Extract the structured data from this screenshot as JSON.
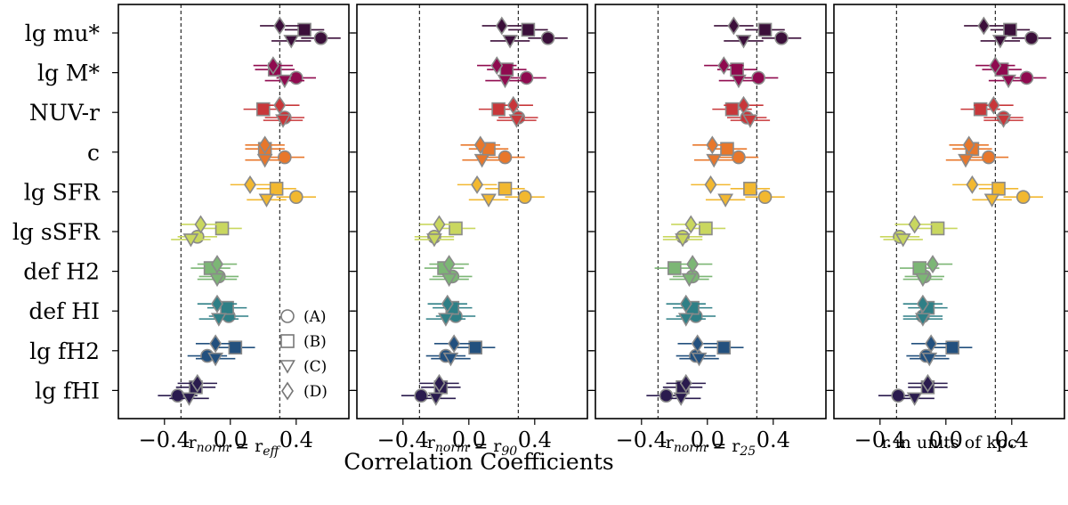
{
  "figure": {
    "shared_xlabel": "Correlation Coefficients",
    "legend": [
      {
        "label": "(A)",
        "marker": "circle"
      },
      {
        "label": "(B)",
        "marker": "square"
      },
      {
        "label": "(C)",
        "marker": "triangle-down"
      },
      {
        "label": "(D)",
        "marker": "diamond"
      }
    ],
    "row_colors": [
      "#3b0f3a",
      "#8f0a4f",
      "#c8373a",
      "#e8772b",
      "#f2b830",
      "#c9d75f",
      "#7cb675",
      "#2f7f86",
      "#23507e",
      "#2a1b4e"
    ]
  },
  "chart_data": [
    {
      "type": "scatter",
      "panel_label_main": "r",
      "panel_label_sub": "norm",
      "panel_label_rest": " = r",
      "panel_label_rest_sub": "eff",
      "categories": [
        "lg mu*",
        "lg M*",
        "NUV-r",
        "c",
        "lg SFR",
        "lg sSFR",
        "def H2",
        "def HI",
        "lg fH2",
        "lg fHI"
      ],
      "xlim": [
        -0.68,
        0.72
      ],
      "xticks": [
        -0.4,
        0.0,
        0.4
      ],
      "xtick_labels": [
        "−0.4",
        "0.0",
        "0.4"
      ],
      "ref_lines": [
        -0.3,
        0.3
      ],
      "series": [
        {
          "name": "(A)",
          "marker": "circle",
          "values": [
            0.55,
            0.4,
            0.33,
            0.33,
            0.4,
            -0.2,
            -0.07,
            -0.01,
            -0.14,
            -0.32
          ],
          "errors": [
            0.12,
            0.12,
            0.12,
            0.12,
            0.12,
            0.12,
            0.12,
            0.12,
            0.12,
            0.12
          ]
        },
        {
          "name": "(B)",
          "marker": "square",
          "values": [
            0.45,
            0.27,
            0.2,
            0.21,
            0.28,
            -0.05,
            -0.12,
            -0.02,
            0.03,
            -0.21
          ],
          "errors": [
            0.12,
            0.12,
            0.12,
            0.12,
            0.12,
            0.12,
            0.12,
            0.12,
            0.12,
            0.12
          ]
        },
        {
          "name": "(C)",
          "marker": "triangle-down",
          "values": [
            0.37,
            0.33,
            0.32,
            0.21,
            0.22,
            -0.24,
            -0.08,
            -0.07,
            -0.09,
            -0.25
          ],
          "errors": [
            0.12,
            0.12,
            0.12,
            0.12,
            0.12,
            0.12,
            0.12,
            0.12,
            0.12,
            0.12
          ]
        },
        {
          "name": "(D)",
          "marker": "diamond",
          "values": [
            0.3,
            0.26,
            0.3,
            0.21,
            0.12,
            -0.18,
            -0.08,
            -0.08,
            -0.09,
            -0.2
          ],
          "errors": [
            0.12,
            0.12,
            0.12,
            0.12,
            0.12,
            0.12,
            0.12,
            0.12,
            0.12,
            0.12
          ]
        }
      ]
    },
    {
      "type": "scatter",
      "panel_label_main": "r",
      "panel_label_sub": "norm",
      "panel_label_rest": " = r",
      "panel_label_rest_sub": "90",
      "categories": [
        "lg mu*",
        "lg M*",
        "NUV-r",
        "c",
        "lg SFR",
        "lg sSFR",
        "def H2",
        "def HI",
        "lg fH2",
        "lg fHI"
      ],
      "xlim": [
        -0.68,
        0.72
      ],
      "xticks": [
        -0.4,
        0.0,
        0.4
      ],
      "xtick_labels": [
        "−0.4",
        "0.0",
        "0.4"
      ],
      "ref_lines": [
        -0.3,
        0.3
      ],
      "series": [
        {
          "name": "(A)",
          "marker": "circle",
          "values": [
            0.48,
            0.35,
            0.3,
            0.22,
            0.34,
            -0.21,
            -0.1,
            -0.08,
            -0.14,
            -0.29
          ],
          "errors": [
            0.12,
            0.12,
            0.12,
            0.12,
            0.12,
            0.12,
            0.12,
            0.12,
            0.12,
            0.12
          ]
        },
        {
          "name": "(B)",
          "marker": "square",
          "values": [
            0.36,
            0.23,
            0.18,
            0.12,
            0.22,
            -0.08,
            -0.15,
            -0.1,
            0.04,
            -0.17
          ],
          "errors": [
            0.12,
            0.12,
            0.12,
            0.12,
            0.12,
            0.12,
            0.12,
            0.12,
            0.12,
            0.12
          ]
        },
        {
          "name": "(C)",
          "marker": "triangle-down",
          "values": [
            0.25,
            0.22,
            0.29,
            0.08,
            0.12,
            -0.21,
            -0.12,
            -0.14,
            -0.11,
            -0.2
          ],
          "errors": [
            0.12,
            0.12,
            0.12,
            0.12,
            0.12,
            0.12,
            0.12,
            0.12,
            0.12,
            0.12
          ]
        },
        {
          "name": "(D)",
          "marker": "diamond",
          "values": [
            0.2,
            0.17,
            0.27,
            0.07,
            0.05,
            -0.18,
            -0.12,
            -0.13,
            -0.09,
            -0.18
          ],
          "errors": [
            0.12,
            0.12,
            0.12,
            0.12,
            0.12,
            0.12,
            0.12,
            0.12,
            0.12,
            0.12
          ]
        }
      ]
    },
    {
      "type": "scatter",
      "panel_label_main": "r",
      "panel_label_sub": "norm",
      "panel_label_rest": " = r",
      "panel_label_rest_sub": "25",
      "categories": [
        "lg mu*",
        "lg M*",
        "NUV-r",
        "c",
        "lg SFR",
        "lg sSFR",
        "def H2",
        "def HI",
        "lg fH2",
        "lg fHI"
      ],
      "xlim": [
        -0.68,
        0.72
      ],
      "xticks": [
        -0.4,
        0.0,
        0.4
      ],
      "xtick_labels": [
        "−0.4",
        "0.0",
        "0.4"
      ],
      "ref_lines": [
        -0.3,
        0.3
      ],
      "series": [
        {
          "name": "(A)",
          "marker": "circle",
          "values": [
            0.45,
            0.31,
            0.24,
            0.19,
            0.35,
            -0.15,
            -0.09,
            -0.07,
            -0.07,
            -0.25
          ],
          "errors": [
            0.12,
            0.12,
            0.12,
            0.12,
            0.12,
            0.12,
            0.12,
            0.12,
            0.12,
            0.12
          ]
        },
        {
          "name": "(B)",
          "marker": "square",
          "values": [
            0.35,
            0.18,
            0.15,
            0.12,
            0.26,
            -0.01,
            -0.2,
            -0.09,
            0.1,
            -0.15
          ],
          "errors": [
            0.12,
            0.12,
            0.12,
            0.12,
            0.12,
            0.12,
            0.12,
            0.12,
            0.12,
            0.12
          ]
        },
        {
          "name": "(C)",
          "marker": "triangle-down",
          "values": [
            0.22,
            0.19,
            0.26,
            0.04,
            0.11,
            -0.15,
            -0.11,
            -0.13,
            -0.05,
            -0.16
          ],
          "errors": [
            0.12,
            0.12,
            0.12,
            0.12,
            0.12,
            0.12,
            0.12,
            0.12,
            0.12,
            0.12
          ]
        },
        {
          "name": "(D)",
          "marker": "diamond",
          "values": [
            0.16,
            0.1,
            0.22,
            0.03,
            0.02,
            -0.1,
            -0.09,
            -0.13,
            -0.06,
            -0.13
          ],
          "errors": [
            0.12,
            0.12,
            0.12,
            0.12,
            0.12,
            0.12,
            0.12,
            0.12,
            0.12,
            0.12
          ]
        }
      ]
    },
    {
      "type": "scatter",
      "panel_label_main": "r in units of kpc",
      "panel_label_sub": "",
      "panel_label_rest": "",
      "panel_label_rest_sub": "",
      "categories": [
        "lg mu*",
        "lg M*",
        "NUV-r",
        "c",
        "lg SFR",
        "lg sSFR",
        "def H2",
        "def HI",
        "lg fH2",
        "lg fHI"
      ],
      "xlim": [
        -0.68,
        0.72
      ],
      "xticks": [
        -0.4,
        0.0,
        0.4
      ],
      "xtick_labels": [
        "−0.4",
        "0.0",
        "0.4"
      ],
      "ref_lines": [
        -0.3,
        0.3
      ],
      "series": [
        {
          "name": "(A)",
          "marker": "circle",
          "values": [
            0.52,
            0.49,
            0.35,
            0.26,
            0.47,
            -0.28,
            -0.13,
            -0.14,
            -0.12,
            -0.29
          ],
          "errors": [
            0.12,
            0.12,
            0.12,
            0.12,
            0.12,
            0.12,
            0.12,
            0.12,
            0.12,
            0.12
          ]
        },
        {
          "name": "(B)",
          "marker": "square",
          "values": [
            0.39,
            0.34,
            0.21,
            0.16,
            0.32,
            -0.05,
            -0.16,
            -0.11,
            0.04,
            -0.11
          ],
          "errors": [
            0.12,
            0.12,
            0.12,
            0.12,
            0.12,
            0.12,
            0.12,
            0.12,
            0.12,
            0.12
          ]
        },
        {
          "name": "(C)",
          "marker": "triangle-down",
          "values": [
            0.33,
            0.38,
            0.35,
            0.12,
            0.28,
            -0.26,
            -0.14,
            -0.14,
            -0.1,
            -0.19
          ],
          "errors": [
            0.12,
            0.12,
            0.12,
            0.12,
            0.12,
            0.12,
            0.12,
            0.12,
            0.12,
            0.12
          ]
        },
        {
          "name": "(D)",
          "marker": "diamond",
          "values": [
            0.23,
            0.3,
            0.29,
            0.14,
            0.16,
            -0.19,
            -0.08,
            -0.14,
            -0.09,
            -0.11
          ],
          "errors": [
            0.12,
            0.12,
            0.12,
            0.12,
            0.12,
            0.12,
            0.12,
            0.12,
            0.12,
            0.12
          ]
        }
      ]
    }
  ]
}
